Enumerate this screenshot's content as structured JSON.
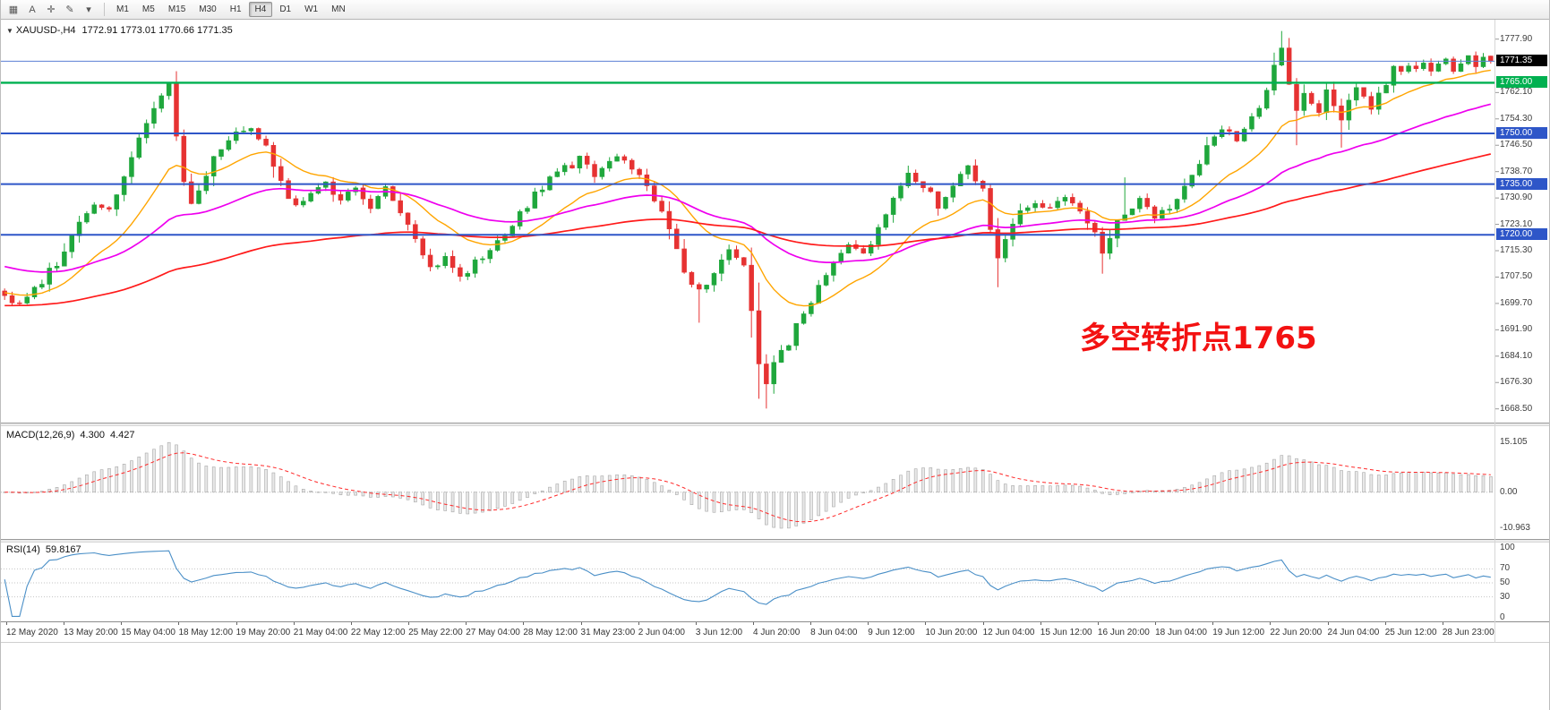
{
  "toolbar": {
    "tools": [
      {
        "name": "chart-grid-icon",
        "glyph": "▦"
      },
      {
        "name": "text-tool-icon",
        "glyph": "A"
      },
      {
        "name": "crosshair-icon",
        "glyph": "✛"
      },
      {
        "name": "draw-tools-icon",
        "glyph": "✎"
      },
      {
        "name": "draw-tools-caret-icon",
        "glyph": "▾"
      }
    ],
    "timeframes": [
      "M1",
      "M5",
      "M15",
      "M30",
      "H1",
      "H4",
      "D1",
      "W1",
      "MN"
    ],
    "active_timeframe": "H4"
  },
  "chart": {
    "collapse_icon": "▼",
    "symbol_title": "XAUUSD-,H4",
    "ohlc_text": "1772.91 1773.01 1770.66 1771.35",
    "annotation_text": "多空转折点1765",
    "annotation_color": "#f31212",
    "current_price": "1771.35",
    "price_ticks": [
      {
        "label": "1777.90",
        "value": 1777.9
      },
      {
        "label": "1762.10",
        "value": 1762.1
      },
      {
        "label": "1754.30",
        "value": 1754.3
      },
      {
        "label": "1746.50",
        "value": 1746.5
      },
      {
        "label": "1738.70",
        "value": 1738.7
      },
      {
        "label": "1730.90",
        "value": 1730.9
      },
      {
        "label": "1723.10",
        "value": 1723.1
      },
      {
        "label": "1715.30",
        "value": 1715.3
      },
      {
        "label": "1707.50",
        "value": 1707.5
      },
      {
        "label": "1699.70",
        "value": 1699.7
      },
      {
        "label": "1691.90",
        "value": 1691.9
      },
      {
        "label": "1684.10",
        "value": 1684.1
      },
      {
        "label": "1676.30",
        "value": 1676.3
      },
      {
        "label": "1668.50",
        "value": 1668.5
      }
    ],
    "levels": [
      {
        "label": "1765.00",
        "value": 1765.0,
        "color": "#00b050",
        "line_width": 2.4
      },
      {
        "label": "1750.00",
        "value": 1750.0,
        "color": "#2e56c8",
        "line_width": 2
      },
      {
        "label": "1735.00",
        "value": 1735.0,
        "color": "#2e56c8",
        "line_width": 2
      },
      {
        "label": "1720.00",
        "value": 1720.0,
        "color": "#2e56c8",
        "line_width": 2
      }
    ],
    "time_labels": [
      "12 May 2020",
      "13 May 20:00",
      "15 May 04:00",
      "18 May 12:00",
      "19 May 20:00",
      "21 May 04:00",
      "22 May 12:00",
      "25 May 22:00",
      "27 May 04:00",
      "28 May 12:00",
      "31 May 23:00",
      "2 Jun 04:00",
      "3 Jun 12:00",
      "4 Jun 20:00",
      "8 Jun 04:00",
      "9 Jun 12:00",
      "10 Jun 20:00",
      "12 Jun 04:00",
      "15 Jun 12:00",
      "16 Jun 20:00",
      "18 Jun 04:00",
      "19 Jun 12:00",
      "22 Jun 20:00",
      "24 Jun 04:00",
      "25 Jun 12:00",
      "28 Jun 23:00"
    ]
  },
  "macd_panel": {
    "name": "MACD(12,26,9)",
    "value_main": "4.300",
    "value_signal": "4.427",
    "scale": [
      {
        "label": "15.105",
        "value": 15.105
      },
      {
        "label": "0.00",
        "value": 0
      },
      {
        "label": "-10.963",
        "value": -10.963
      }
    ]
  },
  "rsi_panel": {
    "name": "RSI(14)",
    "value": "59.8167",
    "scale": [
      {
        "label": "100",
        "value": 100
      },
      {
        "label": "70",
        "value": 70
      },
      {
        "label": "50",
        "value": 50
      },
      {
        "label": "30",
        "value": 30
      },
      {
        "label": "0",
        "value": 0
      }
    ],
    "levels": [
      70,
      50,
      30
    ]
  },
  "chart_data": {
    "type": "candlestick",
    "symbol": "XAUUSD",
    "timeframe": "H4",
    "title": "XAUUSD-,H4 1772.91 1773.01 1770.66 1771.35",
    "last_ohlc": {
      "open": 1772.91,
      "high": 1773.01,
      "low": 1770.66,
      "close": 1771.35
    },
    "extremes": {
      "high": 1780.3,
      "low": 1668.6
    },
    "num_candles": 200,
    "y_range": [
      1665.5,
      1781.0
    ],
    "close_anchors": [
      [
        0,
        1702
      ],
      [
        2,
        1699
      ],
      [
        4,
        1704
      ],
      [
        7,
        1712
      ],
      [
        9,
        1720
      ],
      [
        12,
        1730
      ],
      [
        14,
        1727
      ],
      [
        16,
        1738
      ],
      [
        18,
        1748
      ],
      [
        20,
        1758
      ],
      [
        22,
        1764
      ],
      [
        24,
        1735
      ],
      [
        25,
        1728
      ],
      [
        27,
        1738
      ],
      [
        29,
        1746
      ],
      [
        31,
        1750
      ],
      [
        33,
        1752
      ],
      [
        35,
        1746
      ],
      [
        37,
        1735
      ],
      [
        39,
        1728
      ],
      [
        41,
        1732
      ],
      [
        43,
        1735
      ],
      [
        45,
        1730
      ],
      [
        47,
        1734
      ],
      [
        49,
        1729
      ],
      [
        51,
        1733
      ],
      [
        53,
        1727
      ],
      [
        55,
        1718
      ],
      [
        57,
        1710
      ],
      [
        59,
        1713
      ],
      [
        61,
        1707
      ],
      [
        63,
        1712
      ],
      [
        65,
        1716
      ],
      [
        67,
        1720
      ],
      [
        69,
        1726
      ],
      [
        71,
        1732
      ],
      [
        73,
        1737
      ],
      [
        75,
        1740
      ],
      [
        77,
        1742
      ],
      [
        79,
        1738
      ],
      [
        81,
        1741
      ],
      [
        83,
        1743
      ],
      [
        85,
        1738
      ],
      [
        87,
        1730
      ],
      [
        89,
        1722
      ],
      [
        91,
        1710
      ],
      [
        93,
        1703
      ],
      [
        95,
        1708
      ],
      [
        97,
        1715
      ],
      [
        99,
        1710
      ],
      [
        100,
        1698
      ],
      [
        101,
        1683
      ],
      [
        102,
        1675
      ],
      [
        103,
        1682
      ],
      [
        105,
        1688
      ],
      [
        107,
        1697
      ],
      [
        109,
        1705
      ],
      [
        111,
        1712
      ],
      [
        113,
        1718
      ],
      [
        115,
        1714
      ],
      [
        117,
        1722
      ],
      [
        119,
        1730
      ],
      [
        121,
        1738
      ],
      [
        123,
        1735
      ],
      [
        125,
        1728
      ],
      [
        127,
        1734
      ],
      [
        129,
        1740
      ],
      [
        131,
        1733
      ],
      [
        132,
        1722
      ],
      [
        133,
        1712
      ],
      [
        134,
        1718
      ],
      [
        136,
        1726
      ],
      [
        138,
        1730
      ],
      [
        140,
        1727
      ],
      [
        142,
        1732
      ],
      [
        144,
        1726
      ],
      [
        146,
        1722
      ],
      [
        147,
        1714
      ],
      [
        148,
        1720
      ],
      [
        150,
        1726
      ],
      [
        152,
        1730
      ],
      [
        154,
        1724
      ],
      [
        156,
        1728
      ],
      [
        158,
        1735
      ],
      [
        160,
        1742
      ],
      [
        161,
        1746
      ],
      [
        163,
        1752
      ],
      [
        165,
        1748
      ],
      [
        167,
        1755
      ],
      [
        169,
        1762
      ],
      [
        170,
        1770
      ],
      [
        171,
        1776
      ],
      [
        172,
        1765
      ],
      [
        173,
        1758
      ],
      [
        174,
        1763
      ],
      [
        175,
        1760
      ],
      [
        176,
        1756
      ],
      [
        177,
        1762
      ],
      [
        178,
        1758
      ],
      [
        179,
        1753
      ],
      [
        180,
        1760
      ],
      [
        181,
        1764
      ],
      [
        182,
        1760
      ],
      [
        183,
        1757
      ],
      [
        184,
        1761
      ],
      [
        185,
        1765
      ],
      [
        186,
        1770
      ],
      [
        187,
        1768
      ],
      [
        188,
        1771
      ],
      [
        189,
        1769
      ],
      [
        190,
        1772
      ],
      [
        191,
        1768
      ],
      [
        192,
        1770
      ],
      [
        193,
        1772
      ],
      [
        194,
        1769
      ],
      [
        195,
        1771
      ],
      [
        196,
        1773
      ],
      [
        197,
        1770
      ],
      [
        198,
        1772
      ],
      [
        199,
        1771.35
      ]
    ],
    "wick_overrides": [
      {
        "index": 93,
        "low": 1694
      },
      {
        "index": 101,
        "low": 1671.5
      },
      {
        "index": 133,
        "low": 1704.5
      },
      {
        "index": 147,
        "low": 1708.5
      },
      {
        "index": 150,
        "high": 1737
      },
      {
        "index": 173,
        "low": 1746.5
      },
      {
        "index": 179,
        "low": 1745.8
      }
    ],
    "moving_averages": [
      {
        "name": "ma-fast-line",
        "period": 16,
        "init": 1703,
        "color_key": "ma_fast",
        "width": 1.4
      },
      {
        "name": "ma-mid-line",
        "period": 45,
        "init": 1711,
        "color_key": "ma_mid",
        "width": 1.7
      },
      {
        "name": "ma-slow-line",
        "period": 110,
        "init": 1699,
        "color_key": "ma_slow",
        "width": 1.7
      }
    ],
    "macd": {
      "fast": 12,
      "slow": 26,
      "signal": 9,
      "display_max": 15.105,
      "display_min": -10.963,
      "range": [
        -12.6,
        16.8
      ]
    },
    "rsi": {
      "period": 14,
      "range": [
        0,
        100
      ]
    },
    "colors": {
      "up": "#1fa73c",
      "down": "#e63232",
      "ma_fast": "#ffa500",
      "ma_mid": "#ee00ee",
      "ma_slow": "#ff1a1a",
      "rsi": "#4a8fc7",
      "macd_hist_fill": "#e8e8e8",
      "macd_hist_stroke": "#a8a8a8",
      "macd_signal": "#ff2a2a",
      "price_line": "#5b7fd4",
      "level_blue": "#2e56c8",
      "level_green": "#00b050",
      "current_price_box": "#000000"
    }
  }
}
